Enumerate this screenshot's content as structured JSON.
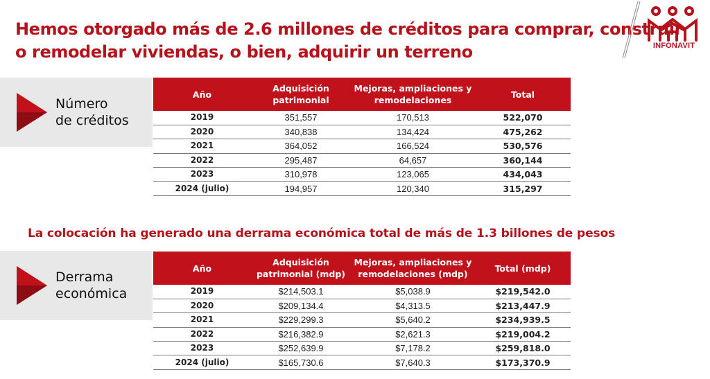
{
  "title": {
    "line1": "Hemos otorgado más de 2.6 millones de créditos para comprar, construir",
    "line2": "o remodelar viviendas, o bien, adquirir un terreno"
  },
  "logo": {
    "text": "INFONAVIT",
    "icon": "infonavit-logo",
    "brand_color": "#b5121b"
  },
  "section1": {
    "label_line1": "Número",
    "label_line2": "de créditos",
    "headers": [
      "Año",
      "Adquisición patrimonial",
      "Mejoras, ampliaciones y remodelaciones",
      "Total"
    ],
    "rows": [
      [
        "2019",
        "351,557",
        "170,513",
        "522,070"
      ],
      [
        "2020",
        "340,838",
        "134,424",
        "475,262"
      ],
      [
        "2021",
        "364,052",
        "166,524",
        "530,576"
      ],
      [
        "2022",
        "295,487",
        "64,657",
        "360,144"
      ],
      [
        "2023",
        "310,978",
        "123,065",
        "434,043"
      ],
      [
        "2024 (julio)",
        "194,957",
        "120,340",
        "315,297"
      ]
    ]
  },
  "subtitle": "La colocación ha generado una derrama económica total de más de 1.3 billones de pesos",
  "section2": {
    "label_line1": "Derrama",
    "label_line2": "económica",
    "headers": [
      "Año",
      "Adquisición patrimonial (mdp)",
      "Mejoras, ampliaciones y remodelaciones (mdp)",
      "Total (mdp)"
    ],
    "rows": [
      [
        "2019",
        "$214,503.1",
        "$5,038.9",
        "$219,542.0"
      ],
      [
        "2020",
        "$209,134.4",
        "$4,313.5",
        "$213,447.9"
      ],
      [
        "2021",
        "$229,299.3",
        "$5,640.2",
        "$234,939.5"
      ],
      [
        "2022",
        "$216,382.9",
        "$2,621.3",
        "$219,004.2"
      ],
      [
        "2023",
        "$252,639.9",
        "$7,178.2",
        "$259,818.0"
      ],
      [
        "2024 (julio)",
        "$165,730.6",
        "$7,640.3",
        "$173,370.9"
      ]
    ]
  },
  "colors": {
    "accent_red": "#c1121b",
    "title_red": "#b5121b",
    "side_gray": "#e8e8e8"
  }
}
